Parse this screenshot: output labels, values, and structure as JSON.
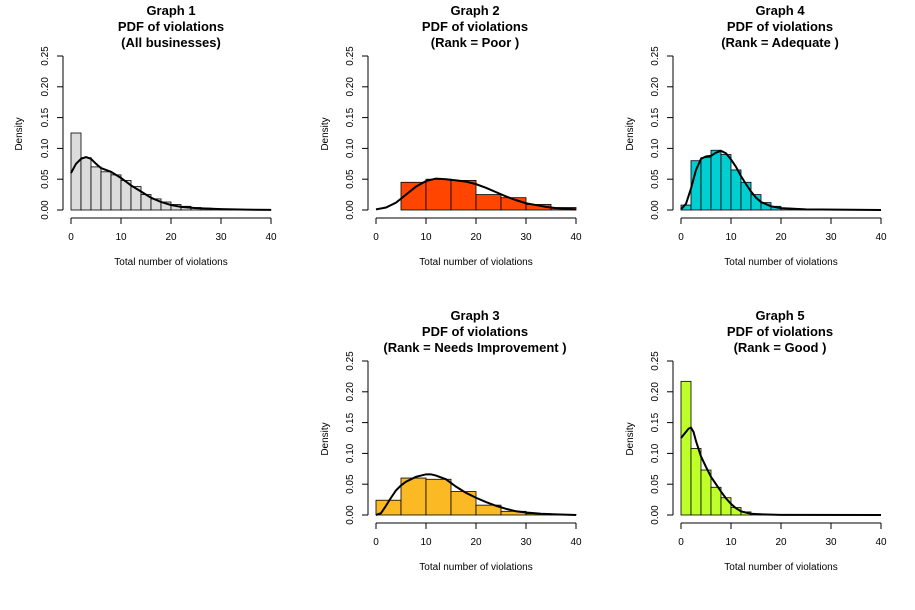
{
  "chart_data": [
    {
      "type": "bar",
      "title_lines": [
        "Graph 1",
        "PDF of violations",
        "(All businesses)"
      ],
      "xlabel": "Total number of violations",
      "ylabel": "Density",
      "xlim": [
        0,
        40
      ],
      "ylim": [
        0,
        0.25
      ],
      "xticks": [
        "0",
        "10",
        "20",
        "30",
        "40"
      ],
      "yticks": [
        "0.00",
        "0.05",
        "0.10",
        "0.15",
        "0.20",
        "0.25"
      ],
      "bar_color": "#DCDCDC",
      "bins": [
        [
          0,
          2,
          0.125
        ],
        [
          2,
          4,
          0.085
        ],
        [
          4,
          6,
          0.07
        ],
        [
          6,
          8,
          0.062
        ],
        [
          8,
          10,
          0.057
        ],
        [
          10,
          12,
          0.048
        ],
        [
          12,
          14,
          0.038
        ],
        [
          14,
          16,
          0.025
        ],
        [
          16,
          18,
          0.018
        ],
        [
          18,
          20,
          0.013
        ],
        [
          20,
          22,
          0.009
        ],
        [
          22,
          24,
          0.006
        ],
        [
          24,
          26,
          0.004
        ],
        [
          26,
          28,
          0.003
        ],
        [
          28,
          30,
          0.002
        ],
        [
          30,
          32,
          0.0015
        ],
        [
          32,
          34,
          0.001
        ],
        [
          34,
          36,
          0.0006
        ],
        [
          36,
          38,
          0.0004
        ],
        [
          38,
          40,
          0.0003
        ]
      ],
      "density_curve": [
        [
          0,
          0.06
        ],
        [
          1,
          0.075
        ],
        [
          2,
          0.083
        ],
        [
          3,
          0.086
        ],
        [
          4,
          0.083
        ],
        [
          5,
          0.075
        ],
        [
          6,
          0.068
        ],
        [
          7,
          0.065
        ],
        [
          8,
          0.062
        ],
        [
          10,
          0.052
        ],
        [
          12,
          0.04
        ],
        [
          14,
          0.03
        ],
        [
          16,
          0.02
        ],
        [
          18,
          0.013
        ],
        [
          20,
          0.008
        ],
        [
          22,
          0.005
        ],
        [
          25,
          0.003
        ],
        [
          30,
          0.0015
        ],
        [
          35,
          0.0006
        ],
        [
          40,
          0.0002
        ]
      ]
    },
    {
      "type": "bar",
      "title_lines": [
        "Graph  2",
        "PDF of violations",
        "(Rank =  Poor )"
      ],
      "xlabel": "Total number of violations",
      "ylabel": "Density",
      "xlim": [
        0,
        40
      ],
      "ylim": [
        0,
        0.25
      ],
      "xticks": [
        "0",
        "10",
        "20",
        "30",
        "40"
      ],
      "yticks": [
        "0.00",
        "0.05",
        "0.10",
        "0.15",
        "0.20",
        "0.25"
      ],
      "bar_color": "#FF4500",
      "bins": [
        [
          5,
          10,
          0.045
        ],
        [
          10,
          15,
          0.05
        ],
        [
          15,
          20,
          0.048
        ],
        [
          20,
          25,
          0.025
        ],
        [
          25,
          30,
          0.02
        ],
        [
          30,
          35,
          0.009
        ],
        [
          35,
          40,
          0.004
        ]
      ],
      "density_curve": [
        [
          0,
          0.001
        ],
        [
          2,
          0.004
        ],
        [
          4,
          0.012
        ],
        [
          6,
          0.025
        ],
        [
          8,
          0.038
        ],
        [
          10,
          0.047
        ],
        [
          12,
          0.051
        ],
        [
          14,
          0.05
        ],
        [
          16,
          0.048
        ],
        [
          18,
          0.046
        ],
        [
          20,
          0.042
        ],
        [
          22,
          0.036
        ],
        [
          24,
          0.029
        ],
        [
          26,
          0.022
        ],
        [
          28,
          0.016
        ],
        [
          30,
          0.011
        ],
        [
          32,
          0.008
        ],
        [
          34,
          0.005
        ],
        [
          36,
          0.003
        ],
        [
          38,
          0.002
        ],
        [
          40,
          0.001
        ]
      ]
    },
    {
      "type": "bar",
      "title_lines": [
        "Graph  4",
        "PDF of violations",
        "(Rank =  Adequate )"
      ],
      "xlabel": "Total number of violations",
      "ylabel": "Density",
      "xlim": [
        0,
        40
      ],
      "ylim": [
        0,
        0.25
      ],
      "xticks": [
        "0",
        "10",
        "20",
        "30",
        "40"
      ],
      "yticks": [
        "0.00",
        "0.05",
        "0.10",
        "0.15",
        "0.20",
        "0.25"
      ],
      "bar_color": "#00CED1",
      "bins": [
        [
          0,
          2,
          0.008
        ],
        [
          2,
          4,
          0.08
        ],
        [
          4,
          6,
          0.085
        ],
        [
          6,
          8,
          0.097
        ],
        [
          8,
          10,
          0.09
        ],
        [
          10,
          12,
          0.065
        ],
        [
          12,
          14,
          0.045
        ],
        [
          14,
          16,
          0.025
        ],
        [
          16,
          18,
          0.012
        ],
        [
          18,
          20,
          0.006
        ],
        [
          20,
          22,
          0.003
        ],
        [
          22,
          24,
          0.0015
        ],
        [
          24,
          26,
          0.001
        ],
        [
          26,
          28,
          0.0005
        ],
        [
          28,
          30,
          0.0003
        ]
      ],
      "density_curve": [
        [
          0,
          0.001
        ],
        [
          1,
          0.01
        ],
        [
          2,
          0.035
        ],
        [
          3,
          0.065
        ],
        [
          4,
          0.083
        ],
        [
          5,
          0.087
        ],
        [
          6,
          0.088
        ],
        [
          7,
          0.093
        ],
        [
          8,
          0.096
        ],
        [
          9,
          0.092
        ],
        [
          10,
          0.082
        ],
        [
          11,
          0.07
        ],
        [
          12,
          0.055
        ],
        [
          13,
          0.042
        ],
        [
          14,
          0.03
        ],
        [
          15,
          0.02
        ],
        [
          16,
          0.013
        ],
        [
          18,
          0.006
        ],
        [
          20,
          0.003
        ],
        [
          25,
          0.001
        ],
        [
          40,
          0.0
        ]
      ]
    },
    {
      "type": "bar",
      "title_lines": [
        "Graph  3",
        "PDF of violations",
        "(Rank =  Needs Improvement )"
      ],
      "xlabel": "Total number of violations",
      "ylabel": "Density",
      "xlim": [
        0,
        40
      ],
      "ylim": [
        0,
        0.25
      ],
      "xticks": [
        "0",
        "10",
        "20",
        "30",
        "40"
      ],
      "yticks": [
        "0.00",
        "0.05",
        "0.10",
        "0.15",
        "0.20",
        "0.25"
      ],
      "bar_color": "#FBB924",
      "bins": [
        [
          0,
          5,
          0.024
        ],
        [
          5,
          10,
          0.06
        ],
        [
          10,
          15,
          0.058
        ],
        [
          15,
          20,
          0.038
        ],
        [
          20,
          25,
          0.016
        ],
        [
          25,
          30,
          0.006
        ],
        [
          30,
          35,
          0.002
        ],
        [
          35,
          40,
          0.001
        ]
      ],
      "density_curve": [
        [
          0,
          0.0
        ],
        [
          1,
          0.003
        ],
        [
          2,
          0.015
        ],
        [
          3,
          0.028
        ],
        [
          4,
          0.04
        ],
        [
          5,
          0.048
        ],
        [
          6,
          0.054
        ],
        [
          8,
          0.062
        ],
        [
          10,
          0.066
        ],
        [
          11,
          0.066
        ],
        [
          12,
          0.064
        ],
        [
          14,
          0.058
        ],
        [
          16,
          0.046
        ],
        [
          18,
          0.036
        ],
        [
          20,
          0.028
        ],
        [
          22,
          0.021
        ],
        [
          24,
          0.015
        ],
        [
          26,
          0.01
        ],
        [
          28,
          0.006
        ],
        [
          30,
          0.004
        ],
        [
          33,
          0.002
        ],
        [
          36,
          0.001
        ],
        [
          40,
          0.0
        ]
      ]
    },
    {
      "type": "bar",
      "title_lines": [
        "Graph  5",
        "PDF of violations",
        "(Rank =  Good )"
      ],
      "xlabel": "Total number of violations",
      "ylabel": "Density",
      "xlim": [
        0,
        40
      ],
      "ylim": [
        0,
        0.25
      ],
      "xticks": [
        "0",
        "10",
        "20",
        "30",
        "40"
      ],
      "yticks": [
        "0.00",
        "0.05",
        "0.10",
        "0.15",
        "0.20",
        "0.25"
      ],
      "bar_color": "#BFFF2A",
      "bins": [
        [
          0,
          2,
          0.217
        ],
        [
          2,
          4,
          0.108
        ],
        [
          4,
          6,
          0.073
        ],
        [
          6,
          8,
          0.045
        ],
        [
          8,
          10,
          0.028
        ],
        [
          10,
          12,
          0.012
        ],
        [
          12,
          14,
          0.005
        ],
        [
          14,
          16,
          0.002
        ],
        [
          16,
          18,
          0.001
        ],
        [
          18,
          20,
          0.0005
        ]
      ],
      "density_curve": [
        [
          0,
          0.125
        ],
        [
          1,
          0.135
        ],
        [
          1.5,
          0.14
        ],
        [
          2,
          0.142
        ],
        [
          2.5,
          0.135
        ],
        [
          3,
          0.12
        ],
        [
          4,
          0.095
        ],
        [
          5,
          0.078
        ],
        [
          6,
          0.062
        ],
        [
          7,
          0.05
        ],
        [
          8,
          0.038
        ],
        [
          9,
          0.027
        ],
        [
          10,
          0.018
        ],
        [
          11,
          0.011
        ],
        [
          12,
          0.006
        ],
        [
          14,
          0.002
        ],
        [
          16,
          0.001
        ],
        [
          20,
          0.0003
        ],
        [
          40,
          0.0
        ]
      ]
    }
  ]
}
